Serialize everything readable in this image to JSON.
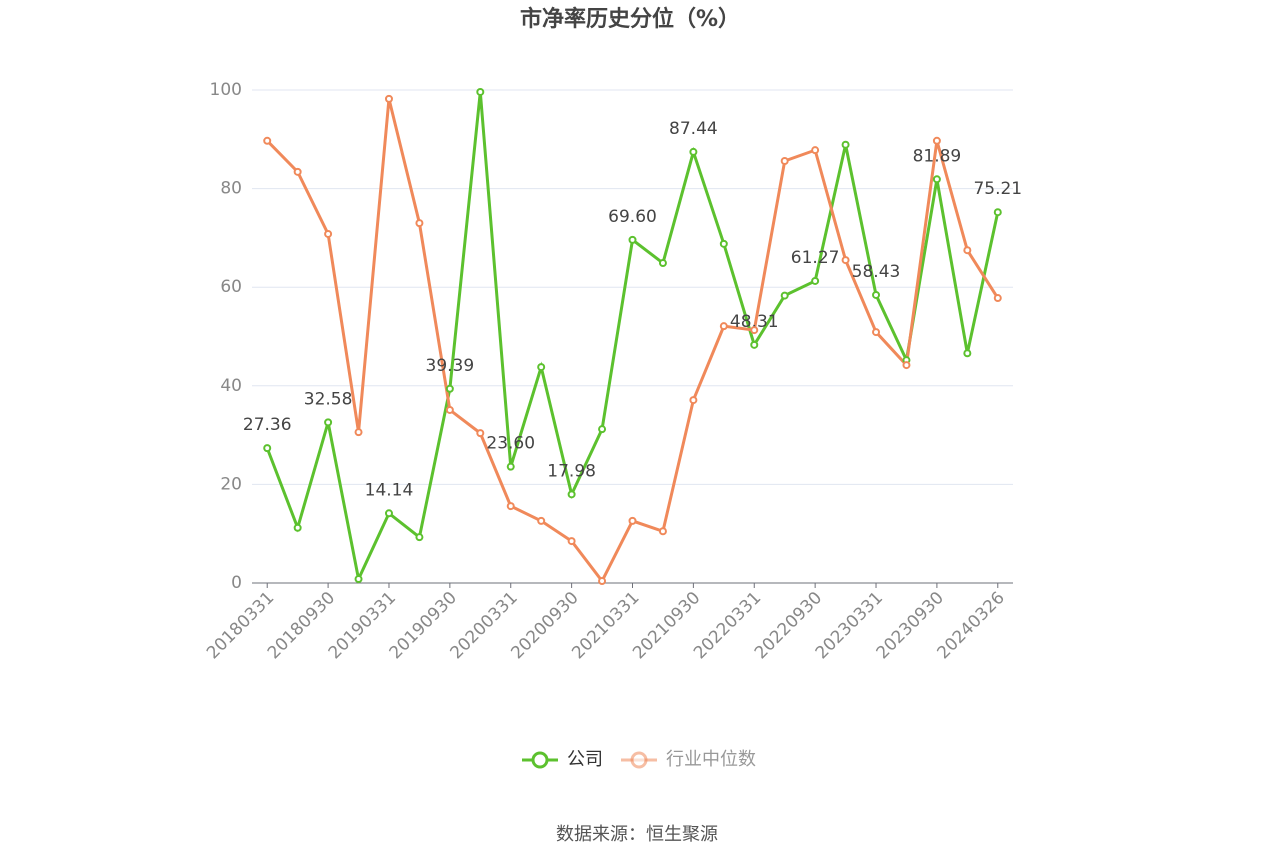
{
  "chart_data": {
    "type": "line",
    "title": "市净率历史分位（%）",
    "categories": [
      "20180331",
      null,
      "20180930",
      null,
      "20190331",
      null,
      "20190930",
      null,
      "20200331",
      null,
      "20200930",
      null,
      "20210331",
      null,
      "20210930",
      null,
      "20220331",
      null,
      "20220930",
      null,
      "20230331",
      null,
      "20230930",
      null,
      "20240326"
    ],
    "series": [
      {
        "name": "公司",
        "color": "#5cc12e",
        "values": [
          27.36,
          11.2,
          32.58,
          0.8,
          14.14,
          9.3,
          39.39,
          99.6,
          23.6,
          43.8,
          17.98,
          31.2,
          69.6,
          64.9,
          87.44,
          68.8,
          48.31,
          58.3,
          61.27,
          88.9,
          58.43,
          45.2,
          81.89,
          46.6,
          75.21
        ],
        "value_labels": [
          "27.36",
          null,
          "32.58",
          null,
          "14.14",
          null,
          "39.39",
          null,
          "23.60",
          null,
          "17.98",
          null,
          "69.60",
          null,
          "87.44",
          null,
          "48.31",
          null,
          "61.27",
          null,
          "58.43",
          null,
          "81.89",
          null,
          "75.21"
        ]
      },
      {
        "name": "行业中位数",
        "color": "#f0895a",
        "values": [
          89.7,
          83.4,
          70.8,
          30.6,
          98.2,
          73.0,
          35.1,
          30.4,
          15.6,
          12.6,
          8.5,
          0.4,
          12.6,
          10.5,
          37.1,
          52.1,
          51.3,
          85.6,
          87.8,
          65.5,
          50.9,
          44.2,
          89.7,
          67.5,
          57.8
        ]
      }
    ],
    "ylim": [
      0,
      100
    ],
    "yticks": [
      0,
      20,
      40,
      60,
      80,
      100
    ],
    "grid": true,
    "source": "数据来源：恒生聚源"
  }
}
